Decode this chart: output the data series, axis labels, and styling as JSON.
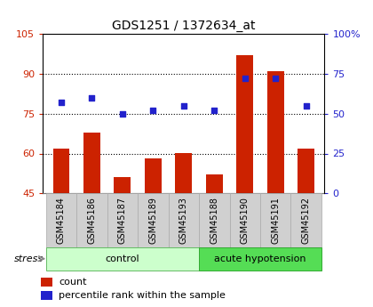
{
  "title": "GDS1251 / 1372634_at",
  "samples": [
    "GSM45184",
    "GSM45186",
    "GSM45187",
    "GSM45189",
    "GSM45193",
    "GSM45188",
    "GSM45190",
    "GSM45191",
    "GSM45192"
  ],
  "counts": [
    62,
    68,
    51,
    58,
    60,
    52,
    97,
    91,
    62
  ],
  "percentiles": [
    57,
    60,
    50,
    52,
    55,
    52,
    72,
    72,
    55
  ],
  "ylim_left": [
    45,
    105
  ],
  "ylim_right": [
    0,
    100
  ],
  "yticks_left": [
    45,
    60,
    75,
    90,
    105
  ],
  "yticks_right": [
    0,
    25,
    50,
    75,
    100
  ],
  "ytick_right_labels": [
    "0",
    "25",
    "50",
    "75",
    "100%"
  ],
  "hgrid_at": [
    60,
    75,
    90
  ],
  "bar_color": "#cc2200",
  "dot_color": "#2222cc",
  "groups": [
    {
      "label": "control",
      "start": 0,
      "end": 5,
      "color": "#ccffcc",
      "border": "#66bb66"
    },
    {
      "label": "acute hypotension",
      "start": 5,
      "end": 9,
      "color": "#55dd55",
      "border": "#33aa33"
    }
  ],
  "stress_label": "stress",
  "legend_items": [
    {
      "label": "count",
      "color": "#cc2200"
    },
    {
      "label": "percentile rank within the sample",
      "color": "#2222cc"
    }
  ],
  "sample_box_color": "#d0d0d0",
  "sample_box_edge": "#aaaaaa",
  "background_color": "#ffffff",
  "title_fontsize": 10,
  "bar_width": 0.55
}
